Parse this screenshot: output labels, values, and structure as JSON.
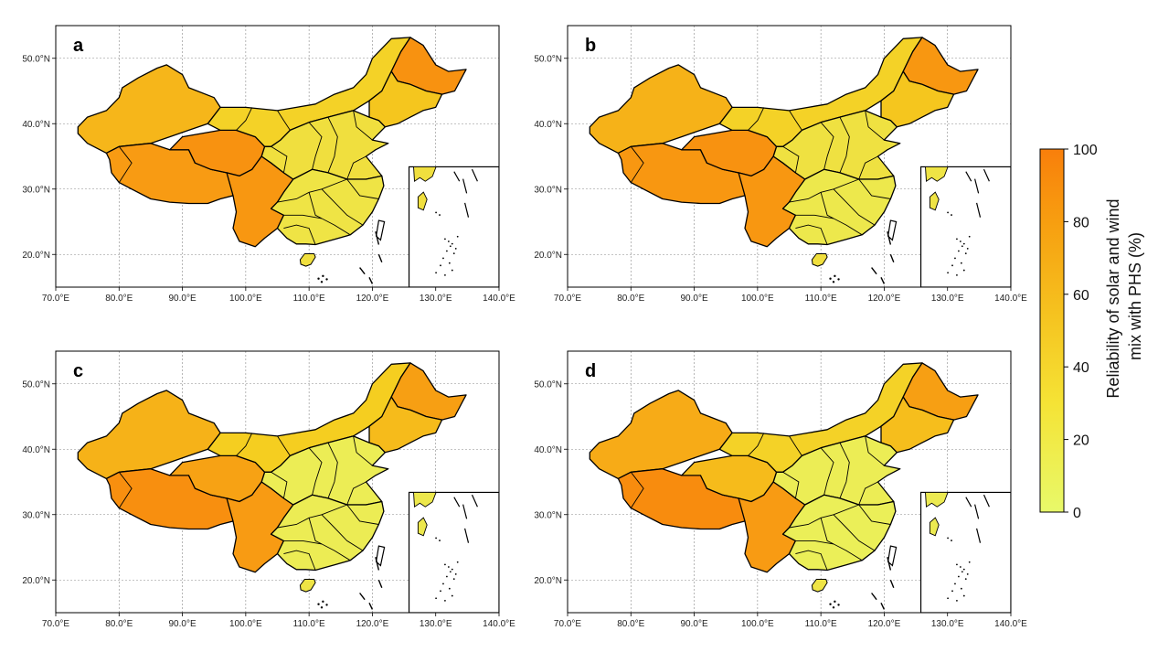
{
  "figure": {
    "panels": [
      {
        "label": "a",
        "regions": {
          "xinjiang": 65,
          "tibet": 82,
          "qinghai": 88,
          "gansu_inner_mongolia": 45,
          "sichuan_yunnan": 85,
          "heilongjiang": 88,
          "jilin_liaoning": 55,
          "north_plain": 30,
          "south_central": 25,
          "hainan": 30
        }
      },
      {
        "label": "b",
        "regions": {
          "xinjiang": 68,
          "tibet": 85,
          "qinghai": 88,
          "gansu_inner_mongolia": 45,
          "sichuan_yunnan": 85,
          "heilongjiang": 85,
          "jilin_liaoning": 55,
          "north_plain": 28,
          "south_central": 20,
          "hainan": 30
        }
      },
      {
        "label": "c",
        "regions": {
          "xinjiang": 68,
          "tibet": 90,
          "qinghai": 78,
          "gansu_inner_mongolia": 50,
          "sichuan_yunnan": 82,
          "heilongjiang": 80,
          "jilin_liaoning": 62,
          "north_plain": 14,
          "south_central": 15,
          "hainan": 25
        }
      },
      {
        "label": "d",
        "regions": {
          "xinjiang": 72,
          "tibet": 92,
          "qinghai": 62,
          "gansu_inner_mongolia": 45,
          "sichuan_yunnan": 82,
          "heilongjiang": 80,
          "jilin_liaoning": 60,
          "north_plain": 14,
          "south_central": 12,
          "hainan": 25
        }
      }
    ],
    "x_ticks": [
      "70.0°E",
      "80.0°E",
      "90.0°E",
      "100.0°E",
      "110.0°E",
      "120.0°E",
      "130.0°E",
      "140.0°E"
    ],
    "y_ticks": [
      "20.0°N",
      "30.0°N",
      "40.0°N",
      "50.0°N"
    ],
    "lon_range": [
      70,
      140
    ],
    "lat_range": [
      15,
      55
    ]
  },
  "colorbar": {
    "label": "Reliability of solar and wind mix with PHS (%)",
    "ticks": [
      "0",
      "20",
      "40",
      "60",
      "80",
      "100"
    ],
    "range": [
      0,
      100
    ],
    "color_low": "#e8f96a",
    "color_mid": "#f5ce20",
    "color_high": "#f97f0b"
  },
  "colors": {
    "border": "#000000",
    "grid": "#888888",
    "frame": "#000000"
  }
}
